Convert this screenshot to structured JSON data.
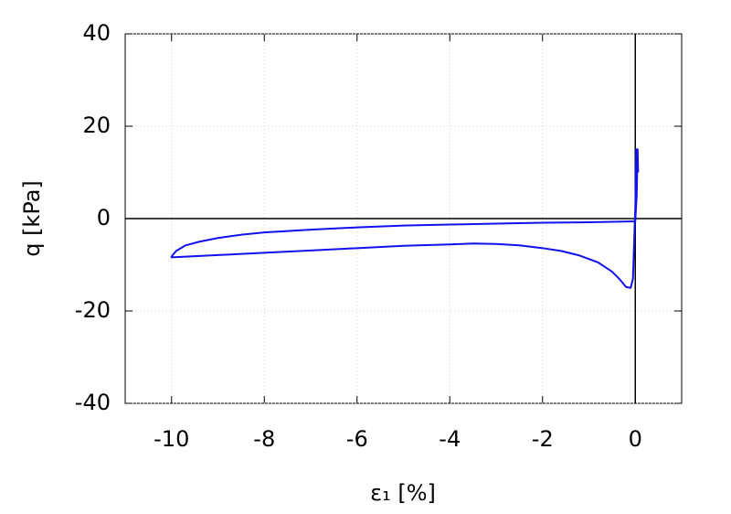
{
  "chart_data": {
    "type": "line",
    "xlabel": "ε₁ [%]",
    "ylabel": "q [kPa]",
    "xlim": [
      -11,
      1
    ],
    "ylim": [
      -40,
      40
    ],
    "xticks": [
      -10,
      -8,
      -6,
      -4,
      -2,
      0
    ],
    "yticks": [
      -40,
      -20,
      0,
      20,
      40
    ],
    "grid": true,
    "zero_axes": true,
    "series": [
      {
        "color": "#1010f0",
        "x": [
          0,
          0.02,
          0.04,
          -0.05,
          -0.1,
          -0.2,
          -0.35,
          -0.5,
          -0.8,
          -1.2,
          -1.6,
          -2,
          -2.5,
          -3,
          -3.5,
          -4,
          -5,
          -6,
          -7,
          -8,
          -9,
          -10,
          -10,
          -9.9,
          -9.7,
          -9.4,
          -9,
          -8.5,
          -8,
          -7,
          -6,
          -5,
          -4,
          -3,
          -2,
          -1,
          0,
          0.03,
          0.05,
          0.06
        ],
        "values": [
          0,
          15,
          14.5,
          -13,
          -15,
          -14.8,
          -13,
          -11.5,
          -9.5,
          -8,
          -7,
          -6.4,
          -5.8,
          -5.5,
          -5.4,
          -5.6,
          -5.9,
          -6.4,
          -6.9,
          -7.4,
          -7.9,
          -8.4,
          -8.2,
          -7,
          -5.8,
          -5,
          -4.2,
          -3.5,
          -3,
          -2.4,
          -1.9,
          -1.5,
          -1.3,
          -1.1,
          -0.9,
          -0.8,
          -0.6,
          5,
          15,
          10
        ]
      }
    ]
  }
}
